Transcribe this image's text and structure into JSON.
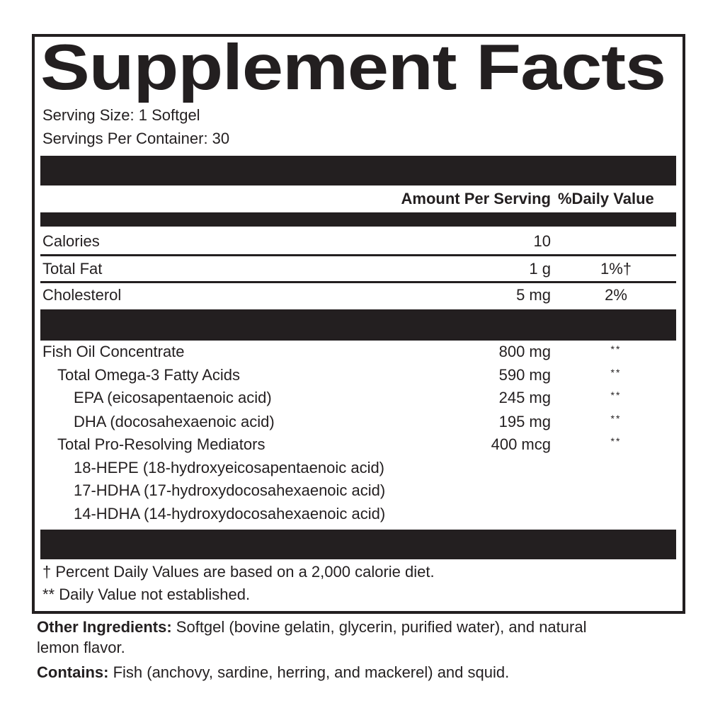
{
  "title": "Supplement Facts",
  "serving_size": "Serving Size: 1 Softgel",
  "servings_per_container": "Servings Per Container: 30",
  "header": {
    "amount": "Amount Per Serving",
    "dv": "%Daily Value"
  },
  "nutrients": [
    {
      "name": "Calories",
      "amount": "10",
      "dv": ""
    },
    {
      "name": "Total Fat",
      "amount": "1 g",
      "dv": "1%†"
    },
    {
      "name": "Cholesterol",
      "amount": "5 mg",
      "dv": "2%"
    }
  ],
  "ingredients": [
    {
      "name": "Fish Oil Concentrate",
      "amount": "800 mg",
      "dv": "**"
    },
    {
      "name": "Total Omega-3 Fatty Acids",
      "amount": "590 mg",
      "dv": "**"
    },
    {
      "name": "EPA (eicosapentaenoic acid)",
      "amount": "245 mg",
      "dv": "**"
    },
    {
      "name": "DHA (docosahexaenoic acid)",
      "amount": "195 mg",
      "dv": "**"
    },
    {
      "name": "Total Pro-Resolving Mediators",
      "amount": "400 mcg",
      "dv": "**"
    },
    {
      "name": "18-HEPE (18-hydroxyeicosapentaenoic acid)",
      "amount": "",
      "dv": ""
    },
    {
      "name": "17-HDHA (17-hydroxydocosahexaenoic acid)",
      "amount": "",
      "dv": ""
    },
    {
      "name": "14-HDHA (14-hydroxydocosahexaenoic acid)",
      "amount": "",
      "dv": ""
    }
  ],
  "footnotes": [
    "† Percent Daily Values are based on a 2,000 calorie diet.",
    "** Daily Value not established."
  ],
  "other_ingredients": {
    "label": "Other Ingredients:",
    "text": " Softgel (bovine gelatin, glycerin, purified water), and natural",
    "text2": "lemon flavor."
  },
  "contains": {
    "label": "Contains:",
    "text": " Fish (anchovy, sardine, herring, and mackerel) and squid."
  }
}
